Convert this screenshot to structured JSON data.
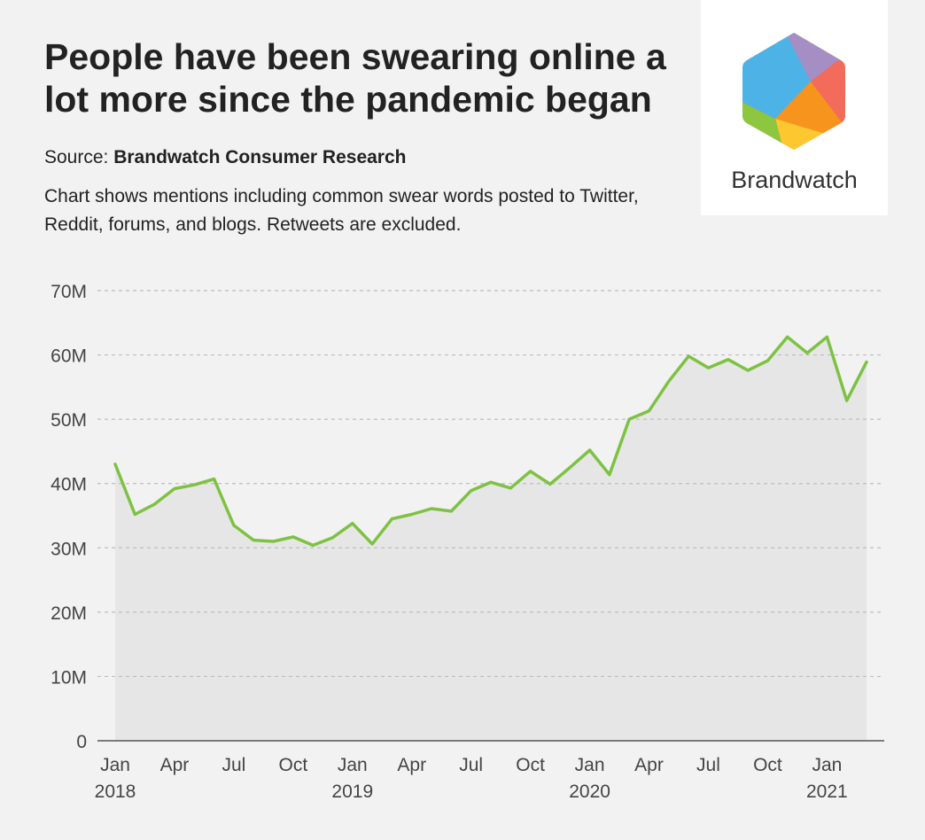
{
  "header": {
    "title": "People have been swearing online a lot more since the pandemic began",
    "source_prefix": "Source: ",
    "source_name": "Brandwatch Consumer Research",
    "description": "Chart shows mentions including common swear words posted to Twitter, Reddit, forums, and blogs. Retweets are excluded."
  },
  "logo": {
    "text": "Brandwatch"
  },
  "colors": {
    "line": "#7dc242",
    "area": "#e6e6e6",
    "grid": "#bdbdbd",
    "background": "#f2f2f2"
  },
  "chart_data": {
    "type": "area",
    "title": "People have been swearing online a lot more since the pandemic began",
    "xlabel": "",
    "ylabel": "",
    "ylim": [
      0,
      70000000
    ],
    "yticks": [
      {
        "value": 0,
        "label": "0"
      },
      {
        "value": 10000000,
        "label": "10M"
      },
      {
        "value": 20000000,
        "label": "20M"
      },
      {
        "value": 30000000,
        "label": "30M"
      },
      {
        "value": 40000000,
        "label": "40M"
      },
      {
        "value": 50000000,
        "label": "50M"
      },
      {
        "value": 60000000,
        "label": "60M"
      },
      {
        "value": 70000000,
        "label": "70M"
      }
    ],
    "xticks": [
      {
        "month": "2018-01",
        "label": "Jan",
        "year": "2018"
      },
      {
        "month": "2018-04",
        "label": "Apr",
        "year": ""
      },
      {
        "month": "2018-07",
        "label": "Jul",
        "year": ""
      },
      {
        "month": "2018-10",
        "label": "Oct",
        "year": ""
      },
      {
        "month": "2019-01",
        "label": "Jan",
        "year": "2019"
      },
      {
        "month": "2019-04",
        "label": "Apr",
        "year": ""
      },
      {
        "month": "2019-07",
        "label": "Jul",
        "year": ""
      },
      {
        "month": "2019-10",
        "label": "Oct",
        "year": ""
      },
      {
        "month": "2020-01",
        "label": "Jan",
        "year": "2020"
      },
      {
        "month": "2020-04",
        "label": "Apr",
        "year": ""
      },
      {
        "month": "2020-07",
        "label": "Jul",
        "year": ""
      },
      {
        "month": "2020-10",
        "label": "Oct",
        "year": ""
      },
      {
        "month": "2021-01",
        "label": "Jan",
        "year": "2021"
      }
    ],
    "grid": true,
    "legend": "none",
    "x": [
      "2018-01",
      "2018-02",
      "2018-03",
      "2018-04",
      "2018-05",
      "2018-06",
      "2018-07",
      "2018-08",
      "2018-09",
      "2018-10",
      "2018-11",
      "2018-12",
      "2019-01",
      "2019-02",
      "2019-03",
      "2019-04",
      "2019-05",
      "2019-06",
      "2019-07",
      "2019-08",
      "2019-09",
      "2019-10",
      "2019-11",
      "2019-12",
      "2020-01",
      "2020-02",
      "2020-03",
      "2020-04",
      "2020-05",
      "2020-06",
      "2020-07",
      "2020-08",
      "2020-09",
      "2020-10",
      "2020-11",
      "2020-12",
      "2021-01",
      "2021-02",
      "2021-03"
    ],
    "series": [
      {
        "values": [
          43000000,
          35200000,
          36800000,
          39200000,
          39800000,
          40700000,
          33500000,
          31200000,
          31000000,
          31700000,
          30400000,
          31600000,
          33800000,
          30600000,
          34500000,
          35200000,
          36100000,
          35700000,
          38900000,
          40200000,
          39300000,
          41900000,
          39900000,
          42500000,
          45200000,
          41400000,
          50000000,
          51300000,
          55900000,
          59800000,
          58000000,
          59300000,
          57600000,
          59100000,
          62800000,
          60300000,
          62800000,
          52900000,
          58900000
        ]
      }
    ]
  }
}
